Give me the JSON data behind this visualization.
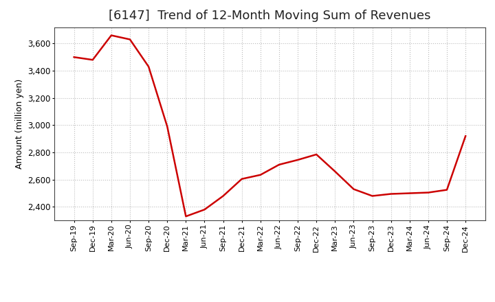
{
  "title": "[6147]  Trend of 12-Month Moving Sum of Revenues",
  "ylabel": "Amount (million yen)",
  "line_color": "#cc0000",
  "line_width": 1.8,
  "background_color": "#ffffff",
  "grid_color": "#bbbbbb",
  "ylim": [
    2300,
    3720
  ],
  "yticks": [
    2400,
    2600,
    2800,
    3000,
    3200,
    3400,
    3600
  ],
  "labels": [
    "Sep-19",
    "Dec-19",
    "Mar-20",
    "Jun-20",
    "Sep-20",
    "Dec-20",
    "Mar-21",
    "Jun-21",
    "Sep-21",
    "Dec-21",
    "Mar-22",
    "Jun-22",
    "Sep-22",
    "Dec-22",
    "Mar-23",
    "Jun-23",
    "Sep-23",
    "Dec-23",
    "Mar-24",
    "Jun-24",
    "Sep-24",
    "Dec-24"
  ],
  "values": [
    3500,
    3480,
    3660,
    3630,
    3430,
    2990,
    2330,
    2380,
    2480,
    2605,
    2635,
    2710,
    2745,
    2785,
    2660,
    2530,
    2480,
    2495,
    2500,
    2505,
    2525,
    2920
  ],
  "title_fontsize": 13,
  "ylabel_fontsize": 9,
  "xtick_fontsize": 8,
  "ytick_fontsize": 8.5
}
